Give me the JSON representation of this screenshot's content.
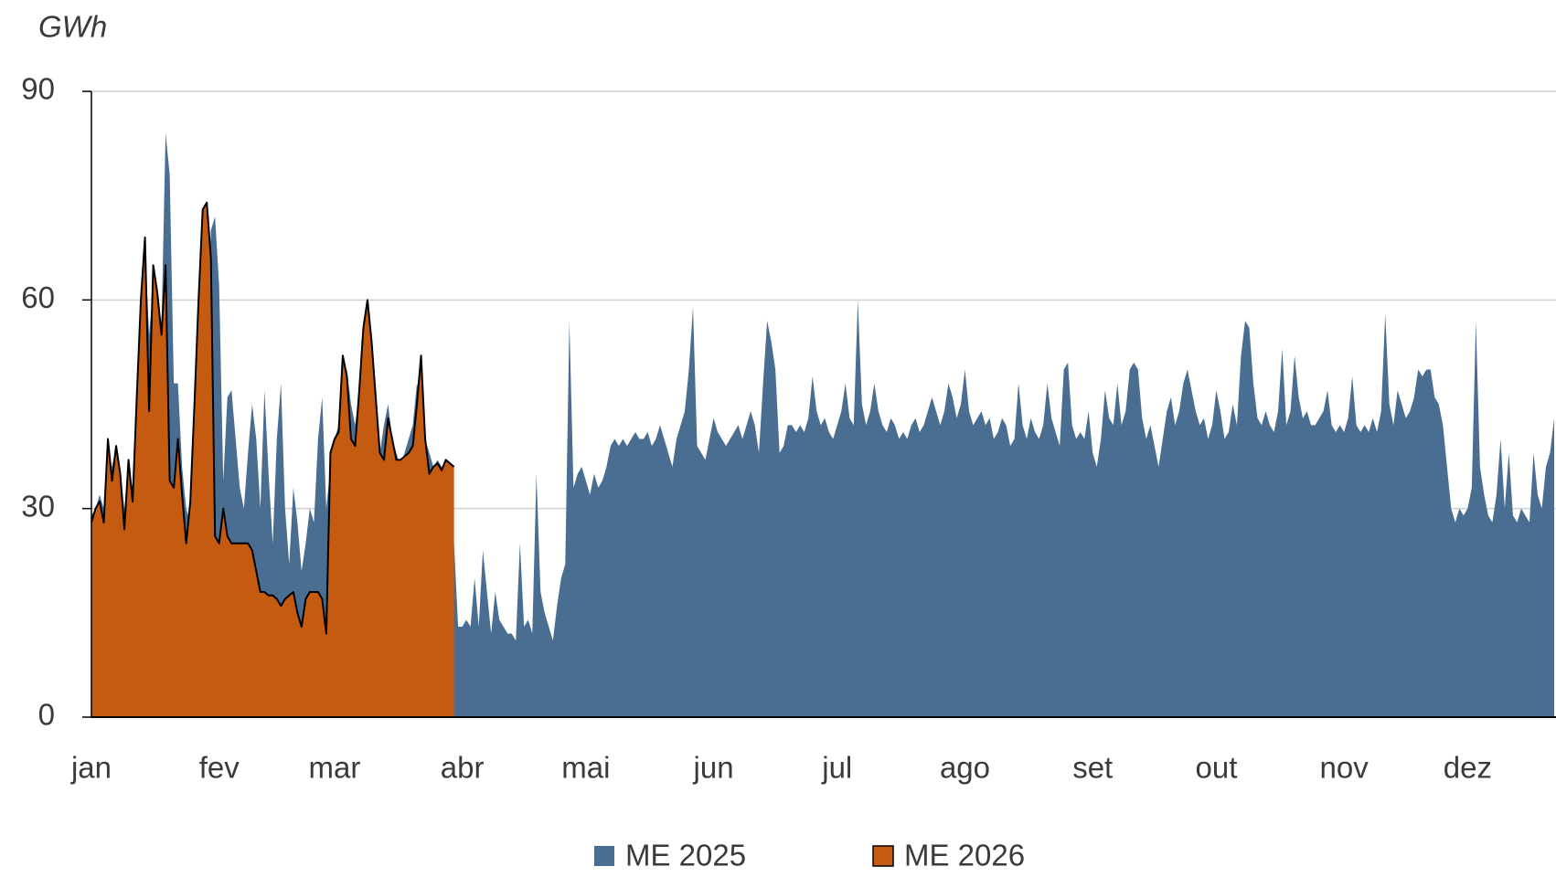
{
  "chart_data": {
    "type": "area",
    "y_label": "GWh",
    "xlim": [
      0,
      355
    ],
    "xticks": [
      {
        "value": 0,
        "label": "jan"
      },
      {
        "value": 31,
        "label": "fev"
      },
      {
        "value": 59,
        "label": "mar"
      },
      {
        "value": 90,
        "label": "abr"
      },
      {
        "value": 120,
        "label": "mai"
      },
      {
        "value": 151,
        "label": "jun"
      },
      {
        "value": 181,
        "label": "jul"
      },
      {
        "value": 212,
        "label": "ago"
      },
      {
        "value": 243,
        "label": "set"
      },
      {
        "value": 273,
        "label": "out"
      },
      {
        "value": 304,
        "label": "nov"
      },
      {
        "value": 334,
        "label": "dez"
      }
    ],
    "ylim": [
      0,
      90
    ],
    "yticks": [
      0,
      30,
      60,
      90
    ],
    "grid": true,
    "legend": "bottom",
    "series": [
      {
        "name": "ME 2025",
        "color": "#4a6e92",
        "values": [
          29,
          30,
          32,
          30,
          38,
          36,
          39,
          35,
          30,
          36,
          33,
          45,
          60,
          68,
          55,
          62,
          58,
          56,
          84,
          78,
          48,
          48,
          36,
          30,
          28,
          33,
          38,
          42,
          50,
          70,
          72,
          62,
          34,
          46,
          47,
          40,
          33,
          30,
          38,
          45,
          40,
          30,
          47,
          35,
          25,
          40,
          48,
          30,
          22,
          33,
          28,
          21,
          25,
          30,
          28,
          40,
          46,
          30,
          36,
          40,
          42,
          48,
          50,
          45,
          42,
          47,
          55,
          50,
          44,
          40,
          38,
          42,
          45,
          40,
          38,
          36,
          38,
          40,
          42,
          48,
          46,
          40,
          38,
          36,
          37,
          36,
          35,
          34,
          25,
          13,
          13,
          14,
          13,
          20,
          13,
          24,
          18,
          12,
          18,
          14,
          13,
          12,
          12,
          11,
          25,
          13,
          14,
          12,
          35,
          18,
          15,
          13,
          11,
          16,
          20,
          22,
          57,
          33,
          35,
          36,
          34,
          32,
          35,
          33,
          34,
          36,
          39,
          40,
          39,
          40,
          39,
          40,
          41,
          40,
          40,
          41,
          39,
          40,
          42,
          40,
          38,
          36,
          40,
          42,
          44,
          50,
          59,
          39,
          38,
          37,
          40,
          43,
          41,
          40,
          39,
          40,
          41,
          42,
          40,
          42,
          44,
          42,
          38,
          48,
          57,
          54,
          50,
          38,
          39,
          42,
          42,
          41,
          42,
          41,
          43,
          49,
          44,
          42,
          43,
          41,
          40,
          42,
          44,
          48,
          43,
          42,
          60,
          45,
          42,
          44,
          48,
          44,
          42,
          41,
          43,
          42,
          40,
          41,
          40,
          42,
          43,
          41,
          42,
          44,
          46,
          44,
          42,
          44,
          48,
          46,
          43,
          45,
          50,
          44,
          42,
          43,
          44,
          42,
          43,
          40,
          41,
          43,
          42,
          39,
          40,
          48,
          42,
          40,
          43,
          41,
          40,
          42,
          48,
          43,
          41,
          39,
          50,
          51,
          42,
          40,
          41,
          40,
          44,
          38,
          36,
          40,
          47,
          43,
          42,
          48,
          42,
          44,
          50,
          51,
          50,
          43,
          40,
          42,
          39,
          36,
          40,
          44,
          46,
          42,
          44,
          48,
          50,
          47,
          44,
          42,
          43,
          40,
          42,
          47,
          44,
          40,
          41,
          45,
          42,
          52,
          57,
          56,
          48,
          43,
          42,
          44,
          42,
          41,
          44,
          53,
          42,
          44,
          52,
          46,
          43,
          44,
          42,
          42,
          43,
          44,
          47,
          42,
          41,
          42,
          41,
          43,
          49,
          42,
          41,
          42,
          41,
          43,
          41,
          44,
          58,
          45,
          42,
          47,
          45,
          43,
          44,
          46,
          50,
          49,
          50,
          50,
          46,
          45,
          42,
          36,
          30,
          28,
          30,
          29,
          30,
          33,
          57,
          36,
          32,
          29,
          28,
          32,
          40,
          30,
          38,
          29,
          28,
          30,
          29,
          28,
          38,
          32,
          30,
          36,
          38,
          43
        ]
      },
      {
        "name": "ME 2026",
        "color": "#c55a11",
        "values": [
          28,
          30,
          31,
          28,
          40,
          34,
          39,
          35,
          27,
          37,
          31,
          46,
          60,
          69,
          44,
          65,
          61,
          55,
          65,
          34,
          33,
          40,
          32,
          25,
          31,
          45,
          60,
          73,
          74,
          66,
          26,
          25,
          30,
          26,
          25,
          25,
          25,
          25,
          25,
          24,
          21,
          18,
          18,
          17.5,
          17.5,
          17,
          16,
          17,
          17.5,
          18,
          15,
          13,
          17,
          18,
          18,
          18,
          17,
          12,
          38,
          40,
          41,
          52,
          49,
          40,
          39,
          47,
          56,
          60,
          54,
          46,
          38,
          37,
          43,
          40,
          37,
          37,
          37.5,
          38,
          39,
          45,
          52,
          40,
          35,
          36,
          36.5,
          35.5,
          37,
          36.5,
          36
        ]
      }
    ]
  }
}
